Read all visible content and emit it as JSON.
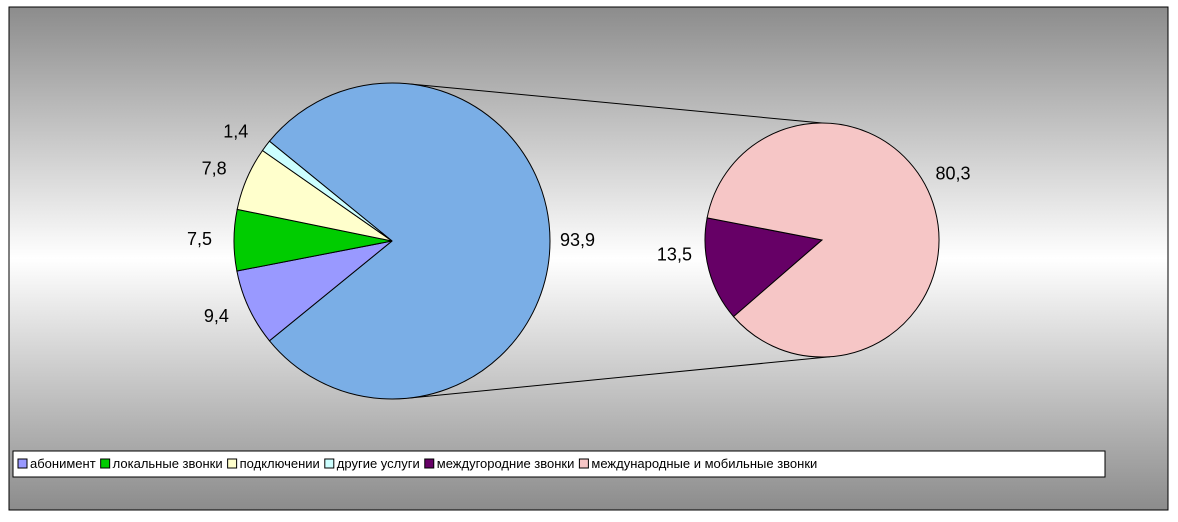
{
  "chart_data": {
    "type": "pie",
    "primary": {
      "categories": [
        "абонимент",
        "локальные звонки",
        "подключении",
        "другие услуги"
      ],
      "values": [
        9.4,
        7.5,
        7.8,
        1.4
      ],
      "value_labels": [
        "9,4",
        "7,5",
        "7,8",
        "1,4"
      ],
      "colors": [
        "#9999ff",
        "#00cc00",
        "#ffffcc",
        "#ccffff"
      ]
    },
    "other": {
      "value": 93.9,
      "value_label": "93,9",
      "color": "#7aaee6"
    },
    "secondary": {
      "categories": [
        "междугородние звонки",
        "международные и мобильные звонки"
      ],
      "values": [
        13.5,
        80.3
      ],
      "value_labels": [
        "13,5",
        "80,3"
      ],
      "colors": [
        "#660066",
        "#f6c6c6"
      ]
    }
  }
}
